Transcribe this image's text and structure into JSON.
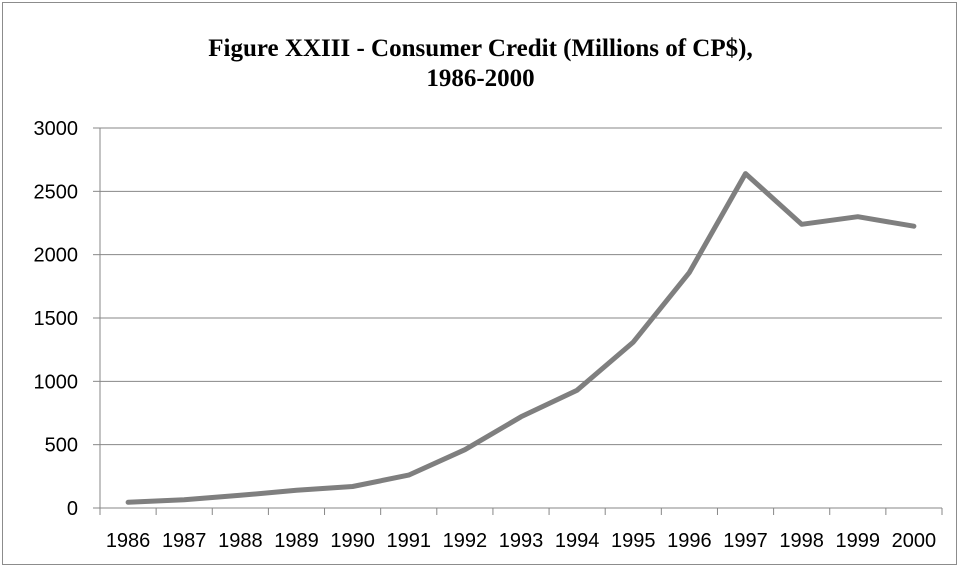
{
  "chart_data": {
    "type": "line",
    "title": "Figure XXIII - Consumer Credit (Millions of CP$),",
    "subtitle": "1986-2000",
    "xlabel": "",
    "ylabel": "",
    "categories": [
      "1986",
      "1987",
      "1988",
      "1989",
      "1990",
      "1991",
      "1992",
      "1993",
      "1994",
      "1995",
      "1996",
      "1997",
      "1998",
      "1999",
      "2000"
    ],
    "series": [
      {
        "values": [
          45,
          65,
          100,
          140,
          170,
          260,
          460,
          720,
          930,
          1310,
          1860,
          2640,
          2240,
          2300,
          2225
        ]
      }
    ],
    "ylim": [
      0,
      3000
    ],
    "yticks": [
      "0",
      "500",
      "1000",
      "1500",
      "2000",
      "2500",
      "3000"
    ],
    "grid": true,
    "legend": "none",
    "line_color": "#7f7f7f",
    "grid_color": "#878787"
  }
}
